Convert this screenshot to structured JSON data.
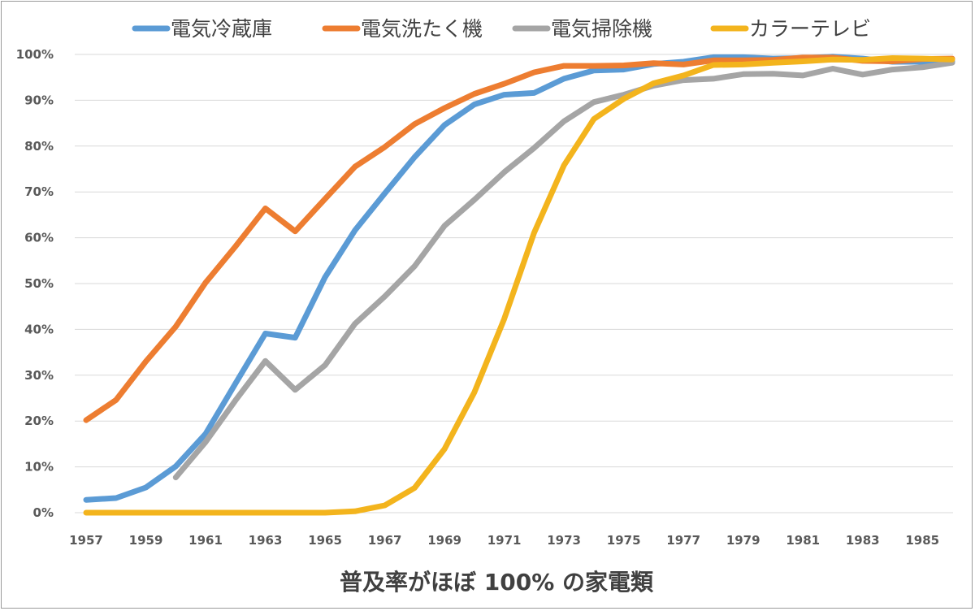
{
  "chart_data": {
    "type": "line",
    "title": "普及率がほぼ 100% の家電類",
    "xlabel": "",
    "ylabel": "",
    "ylim": [
      0,
      100
    ],
    "xlim": [
      1957,
      1986
    ],
    "grid": true,
    "legend_position": "top",
    "y_ticks": [
      "0%",
      "10%",
      "20%",
      "30%",
      "40%",
      "50%",
      "60%",
      "70%",
      "80%",
      "90%",
      "100%"
    ],
    "x_ticks": [
      "1957",
      "1959",
      "1961",
      "1963",
      "1965",
      "1967",
      "1969",
      "1971",
      "1973",
      "1975",
      "1977",
      "1979",
      "1981",
      "1983",
      "1985"
    ],
    "x": [
      1957,
      1958,
      1959,
      1960,
      1961,
      1962,
      1963,
      1964,
      1965,
      1966,
      1967,
      1968,
      1969,
      1970,
      1971,
      1972,
      1973,
      1974,
      1975,
      1976,
      1977,
      1978,
      1979,
      1980,
      1981,
      1982,
      1983,
      1984,
      1985,
      1986
    ],
    "series": [
      {
        "name": "電気冷蔵庫",
        "color": "#5b9bd5",
        "values": [
          2.8,
          3.2,
          5.5,
          10.1,
          17.2,
          28.2,
          39.1,
          38.2,
          51.4,
          61.6,
          69.7,
          77.6,
          84.6,
          89.1,
          91.2,
          91.6,
          94.7,
          96.5,
          96.7,
          97.9,
          98.4,
          99.4,
          99.4,
          99.1,
          99.2,
          99.5,
          99.1,
          98.4,
          98.4,
          98.5
        ]
      },
      {
        "name": "電気洗たく機",
        "color": "#ed7d31",
        "values": [
          20.2,
          24.6,
          33.0,
          40.6,
          50.2,
          58.1,
          66.4,
          61.4,
          68.5,
          75.5,
          79.8,
          84.8,
          88.3,
          91.4,
          93.6,
          96.1,
          97.5,
          97.5,
          97.6,
          98.1,
          97.8,
          98.7,
          98.7,
          98.8,
          99.3,
          99.3,
          98.6,
          98.5,
          99.0,
          99.1
        ]
      },
      {
        "name": "電気掃除機",
        "color": "#a5a5a5",
        "values": [
          null,
          null,
          null,
          7.7,
          15.4,
          24.5,
          33.1,
          26.8,
          32.2,
          41.2,
          47.2,
          53.8,
          62.6,
          68.3,
          74.3,
          79.6,
          85.4,
          89.6,
          91.2,
          93.2,
          94.4,
          94.7,
          95.7,
          95.8,
          95.4,
          96.9,
          95.6,
          96.7,
          97.2,
          98.2
        ]
      },
      {
        "name": "カラーテレビ",
        "color": "#f3b41d",
        "values": [
          0,
          0,
          0,
          0,
          0,
          0,
          0,
          0,
          0,
          0.3,
          1.6,
          5.4,
          13.9,
          26.3,
          42.3,
          61.1,
          75.8,
          85.9,
          90.3,
          93.7,
          95.4,
          97.7,
          97.8,
          98.2,
          98.5,
          98.9,
          98.8,
          99.2,
          99.1,
          98.9
        ]
      }
    ]
  }
}
